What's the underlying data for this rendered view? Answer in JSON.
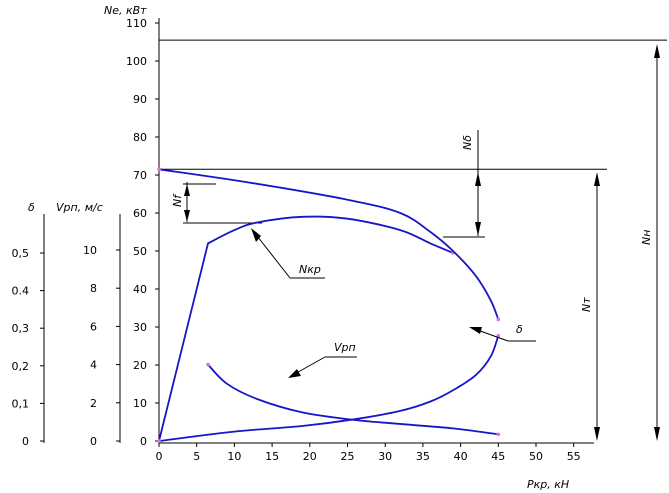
{
  "chart_data": {
    "type": "line",
    "x_axis": {
      "label": "Ркр, кН",
      "range": [
        0,
        59
      ],
      "ticks": [
        0,
        5,
        10,
        15,
        20,
        25,
        30,
        35,
        40,
        45,
        50,
        55
      ]
    },
    "axes": {
      "ne": {
        "label": "Nе, кВт",
        "range": [
          0,
          110
        ],
        "ticks": [
          0,
          10,
          20,
          30,
          40,
          50,
          60,
          70,
          80,
          90,
          100,
          110
        ]
      },
      "vrp": {
        "label": "Vрп, м/с",
        "range": [
          0,
          11
        ],
        "ticks": [
          0,
          2,
          4,
          6,
          8,
          10
        ]
      },
      "delta": {
        "label": "δ",
        "range": [
          0,
          0.55
        ],
        "tick_labels": [
          "0",
          "0,1",
          "0,2",
          "0,3",
          "0.4",
          "0,5"
        ]
      }
    },
    "series": [
      {
        "name": "Nкр",
        "axis": "ne",
        "points": [
          [
            0,
            0
          ],
          [
            6.5,
            52
          ],
          [
            10,
            55.5
          ],
          [
            13,
            57.5
          ],
          [
            19,
            59
          ],
          [
            25,
            58.5
          ],
          [
            32,
            55.5
          ],
          [
            36,
            52
          ],
          [
            39,
            49.5
          ]
        ]
      },
      {
        "name": "",
        "axis": "ne",
        "points": [
          [
            0,
            71.5
          ],
          [
            12,
            68
          ],
          [
            25,
            63.5
          ],
          [
            32,
            60
          ],
          [
            36,
            55
          ],
          [
            39,
            50
          ],
          [
            42,
            43.5
          ],
          [
            44,
            37
          ],
          [
            45,
            32
          ]
        ]
      },
      {
        "name": "Vрп",
        "axis": "vrp",
        "points": [
          [
            6.5,
            4.0
          ],
          [
            9,
            3.0
          ],
          [
            13,
            2.2
          ],
          [
            19,
            1.5
          ],
          [
            26,
            1.1
          ],
          [
            33,
            0.86
          ],
          [
            39,
            0.66
          ],
          [
            45,
            0.35
          ]
        ]
      },
      {
        "name": "δ",
        "axis": "delta",
        "points": [
          [
            0,
            0
          ],
          [
            10,
            0.025
          ],
          [
            19,
            0.04
          ],
          [
            26,
            0.058
          ],
          [
            32,
            0.08
          ],
          [
            36,
            0.105
          ],
          [
            39,
            0.135
          ],
          [
            42,
            0.175
          ],
          [
            44,
            0.225
          ],
          [
            45,
            0.28
          ]
        ]
      }
    ],
    "reference_lines": [
      {
        "label": "Nн",
        "value": 105.5
      },
      {
        "label": "Nт",
        "value": 71.5
      }
    ],
    "dimensions": [
      {
        "label": "Nδ"
      },
      {
        "label": "Nf"
      }
    ],
    "colors": {
      "curves": "#1616c8",
      "axes": "#000000",
      "markers": "#e070d0"
    },
    "grid": false
  }
}
